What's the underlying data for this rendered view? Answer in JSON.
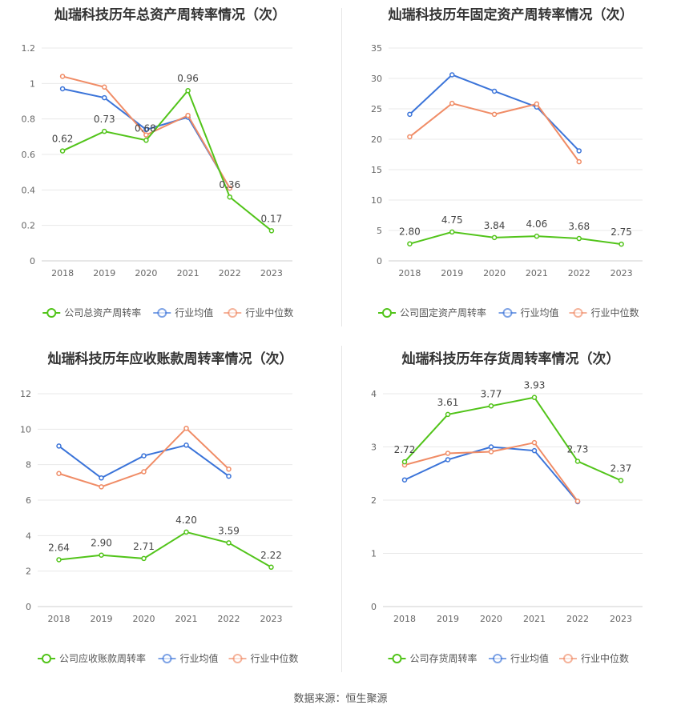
{
  "source_text": "数据来源：恒生聚源",
  "chart_data": [
    {
      "type": "line",
      "title": "灿瑞科技历年总资产周转率情况（次）",
      "categories": [
        "2018",
        "2019",
        "2020",
        "2021",
        "2022",
        "2023"
      ],
      "ylim": [
        0,
        1.2
      ],
      "yticks": [
        "0",
        "0.2",
        "0.4",
        "0.6",
        "0.8",
        "1",
        "1.2"
      ],
      "grid": true,
      "legend_position": "bottom",
      "series": [
        {
          "name": "公司总资产周转率",
          "color": "#52c41a",
          "values": [
            0.62,
            0.73,
            0.68,
            0.96,
            0.36,
            0.17
          ],
          "labels": [
            "0.62",
            "0.73",
            "0.68",
            "0.96",
            "0.36",
            "0.17"
          ]
        },
        {
          "name": "行业均值",
          "color": "#3b74d9",
          "values": [
            0.97,
            0.92,
            0.74,
            0.81,
            0.41,
            null
          ]
        },
        {
          "name": "行业中位数",
          "color": "#f08c66",
          "values": [
            1.04,
            0.98,
            0.71,
            0.82,
            0.41,
            null
          ]
        }
      ]
    },
    {
      "type": "line",
      "title": "灿瑞科技历年固定资产周转率情况（次）",
      "categories": [
        "2018",
        "2019",
        "2020",
        "2021",
        "2022",
        "2023"
      ],
      "ylim": [
        0,
        35
      ],
      "yticks": [
        "0",
        "5",
        "10",
        "15",
        "20",
        "25",
        "30",
        "35"
      ],
      "grid": true,
      "legend_position": "bottom",
      "series": [
        {
          "name": "公司固定资产周转率",
          "color": "#52c41a",
          "values": [
            2.8,
            4.75,
            3.84,
            4.06,
            3.68,
            2.75
          ],
          "labels": [
            "2.80",
            "4.75",
            "3.84",
            "4.06",
            "3.68",
            "2.75"
          ]
        },
        {
          "name": "行业均值",
          "color": "#3b74d9",
          "values": [
            24.1,
            30.6,
            27.9,
            25.3,
            18.1,
            null
          ]
        },
        {
          "name": "行业中位数",
          "color": "#f08c66",
          "values": [
            20.4,
            25.9,
            24.1,
            25.8,
            16.3,
            null
          ]
        }
      ]
    },
    {
      "type": "line",
      "title": "灿瑞科技历年应收账款周转率情况（次）",
      "categories": [
        "2018",
        "2019",
        "2020",
        "2021",
        "2022",
        "2023"
      ],
      "ylim": [
        0,
        12
      ],
      "yticks": [
        "0",
        "2",
        "4",
        "6",
        "8",
        "10",
        "12"
      ],
      "grid": true,
      "legend_position": "bottom",
      "series": [
        {
          "name": "公司应收账款周转率",
          "color": "#52c41a",
          "values": [
            2.64,
            2.9,
            2.71,
            4.2,
            3.59,
            2.22
          ],
          "labels": [
            "2.64",
            "2.90",
            "2.71",
            "4.20",
            "3.59",
            "2.22"
          ]
        },
        {
          "name": "行业均值",
          "color": "#3b74d9",
          "values": [
            9.05,
            7.25,
            8.5,
            9.1,
            7.35,
            null
          ]
        },
        {
          "name": "行业中位数",
          "color": "#f08c66",
          "values": [
            7.5,
            6.75,
            7.6,
            10.05,
            7.75,
            null
          ]
        }
      ]
    },
    {
      "type": "line",
      "title": "灿瑞科技历年存货周转率情况（次）",
      "categories": [
        "2018",
        "2019",
        "2020",
        "2021",
        "2022",
        "2023"
      ],
      "ylim": [
        0,
        4
      ],
      "yticks": [
        "0",
        "1",
        "2",
        "3",
        "4"
      ],
      "grid": true,
      "legend_position": "bottom",
      "series": [
        {
          "name": "公司存货周转率",
          "color": "#52c41a",
          "values": [
            2.72,
            3.61,
            3.77,
            3.93,
            2.73,
            2.37
          ],
          "labels": [
            "2.72",
            "3.61",
            "3.77",
            "3.93",
            "2.73",
            "2.37"
          ]
        },
        {
          "name": "行业均值",
          "color": "#3b74d9",
          "values": [
            2.38,
            2.76,
            3.0,
            2.93,
            1.97,
            null
          ]
        },
        {
          "name": "行业中位数",
          "color": "#f08c66",
          "values": [
            2.66,
            2.88,
            2.91,
            3.08,
            1.98,
            null
          ]
        }
      ]
    }
  ]
}
